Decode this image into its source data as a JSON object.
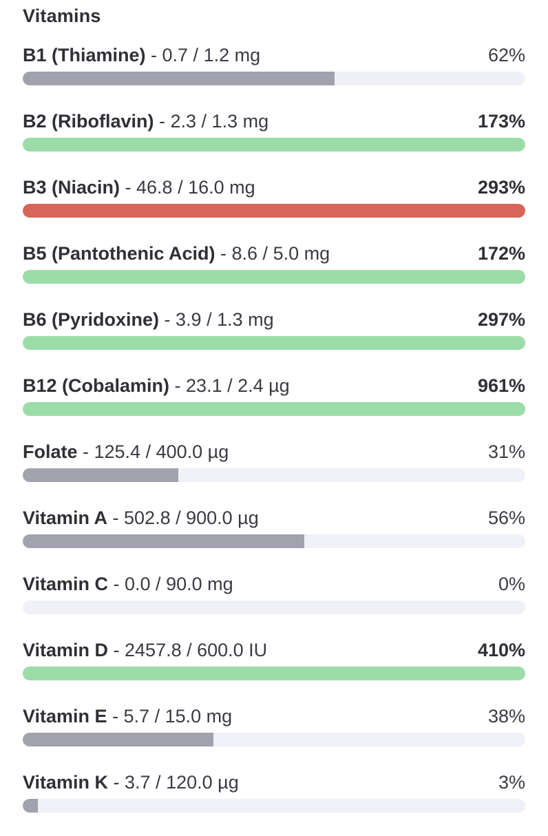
{
  "section": {
    "title": "Vitamins"
  },
  "colors": {
    "under": "#a1a2ae",
    "good": "#9cdca8",
    "excess": "#d6655a",
    "track": "#f0f0f7"
  },
  "rows": [
    {
      "name": "B1 (Thiamine)",
      "amount": " - 0.7 / 1.2 mg",
      "percent": "62%",
      "fill": 0.62,
      "status": "under"
    },
    {
      "name": "B2 (Riboflavin)",
      "amount": " - 2.3 / 1.3 mg",
      "percent": "173%",
      "fill": 1.0,
      "status": "good"
    },
    {
      "name": "B3 (Niacin)",
      "amount": " - 46.8 / 16.0 mg",
      "percent": "293%",
      "fill": 1.0,
      "status": "excess"
    },
    {
      "name": "B5 (Pantothenic Acid)",
      "amount": " - 8.6 / 5.0 mg",
      "percent": "172%",
      "fill": 1.0,
      "status": "good"
    },
    {
      "name": "B6 (Pyridoxine)",
      "amount": " - 3.9 / 1.3 mg",
      "percent": "297%",
      "fill": 1.0,
      "status": "good"
    },
    {
      "name": "B12 (Cobalamin)",
      "amount": " - 23.1 / 2.4 µg",
      "percent": "961%",
      "fill": 1.0,
      "status": "good"
    },
    {
      "name": "Folate",
      "amount": " - 125.4 / 400.0 µg",
      "percent": "31%",
      "fill": 0.31,
      "status": "under"
    },
    {
      "name": "Vitamin A",
      "amount": " - 502.8 / 900.0 µg",
      "percent": "56%",
      "fill": 0.56,
      "status": "under"
    },
    {
      "name": "Vitamin C",
      "amount": " - 0.0 / 90.0 mg",
      "percent": "0%",
      "fill": 0.0,
      "status": "under"
    },
    {
      "name": "Vitamin D",
      "amount": " - 2457.8 / 600.0 IU",
      "percent": "410%",
      "fill": 1.0,
      "status": "good"
    },
    {
      "name": "Vitamin E",
      "amount": " - 5.7 / 15.0 mg",
      "percent": "38%",
      "fill": 0.38,
      "status": "under"
    },
    {
      "name": "Vitamin K",
      "amount": " - 3.7 / 120.0 µg",
      "percent": "3%",
      "fill": 0.03,
      "status": "under"
    }
  ]
}
